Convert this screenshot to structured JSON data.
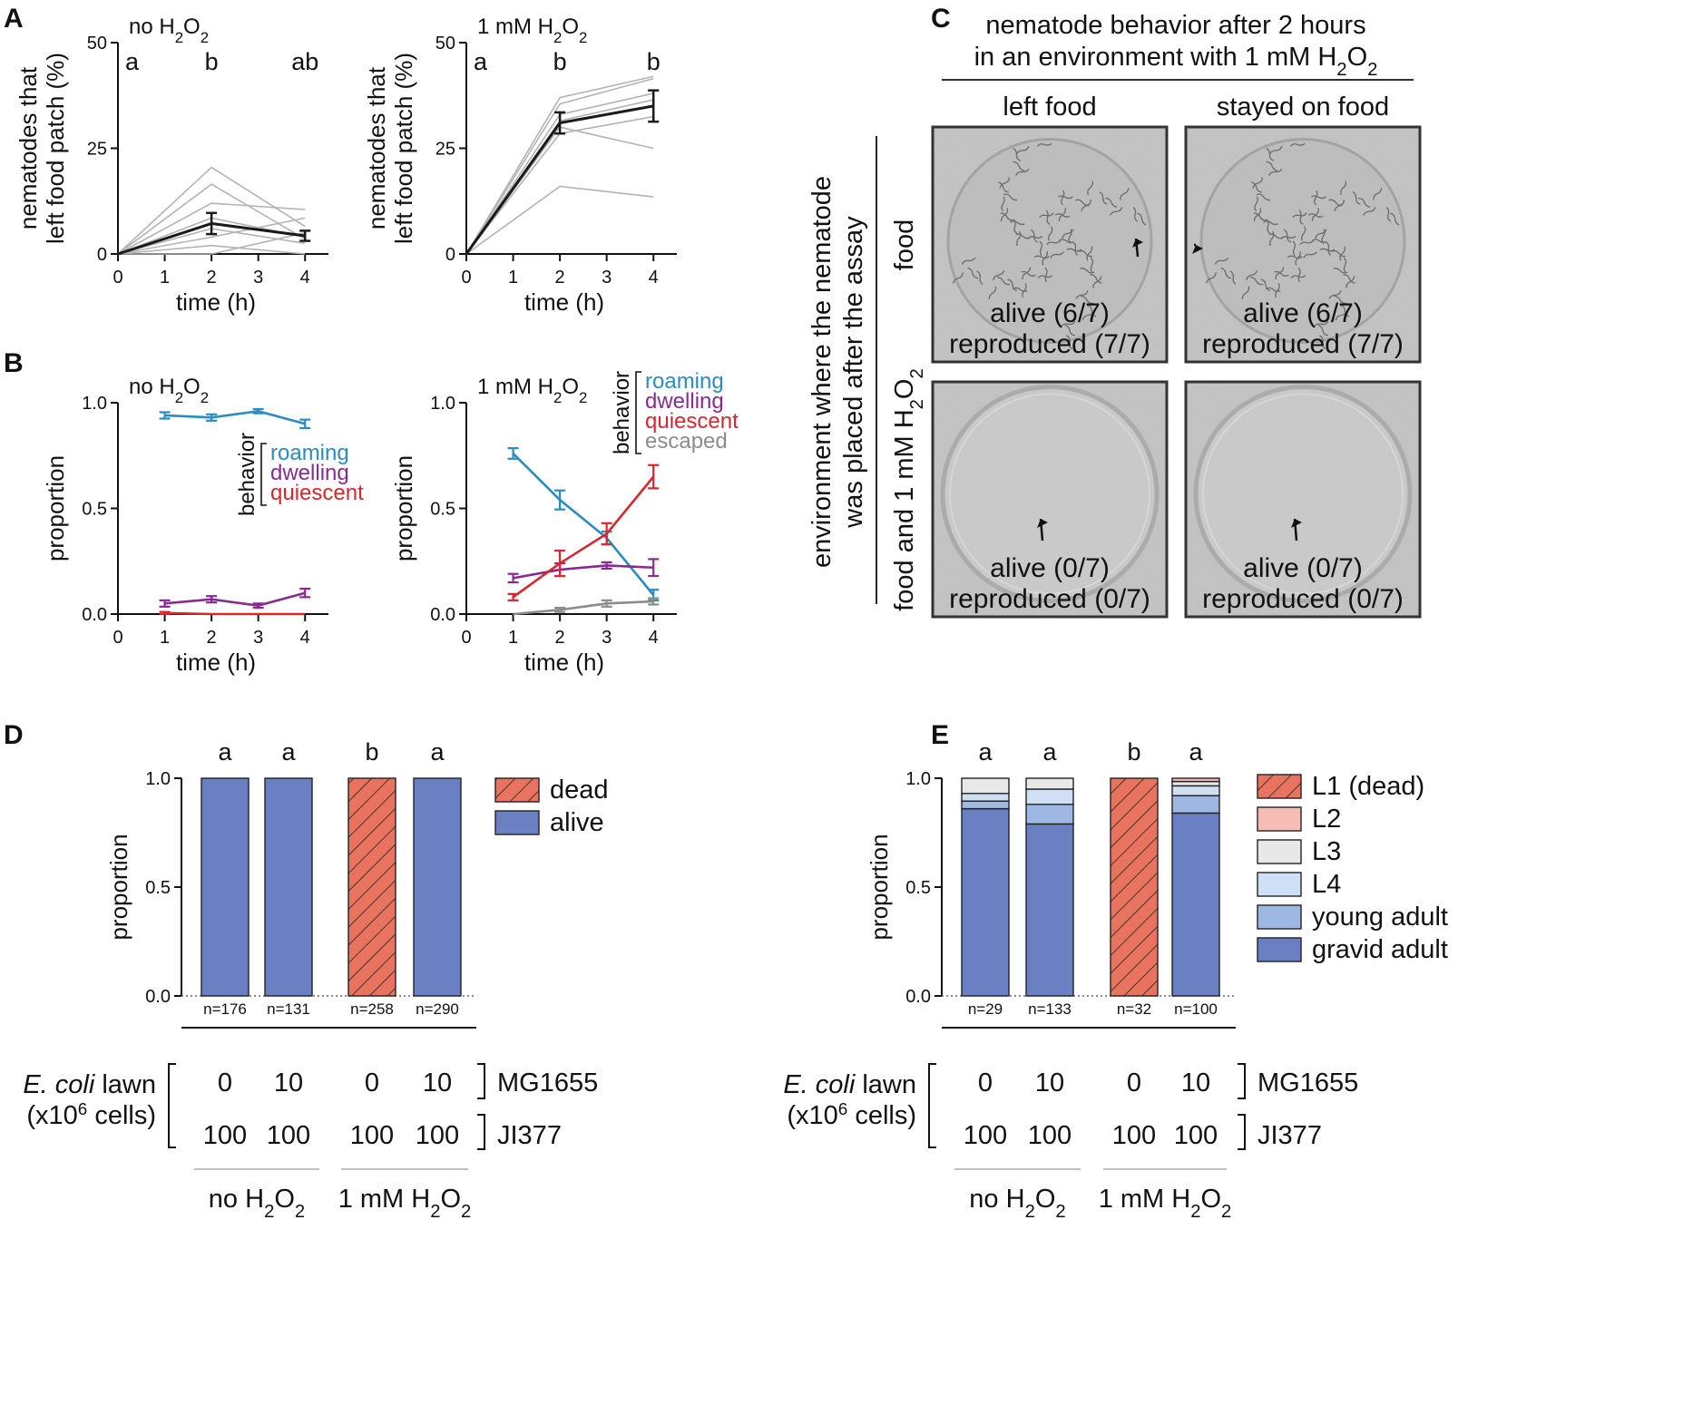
{
  "panel_letters": {
    "A": "A",
    "B": "B",
    "C": "C",
    "D": "D",
    "E": "E"
  },
  "colors": {
    "roaming": "#2a8cc3",
    "dwelling": "#8a2a8f",
    "quiescent": "#d9272e",
    "escaped": "#8c8c8c",
    "alive": "#6a80c2",
    "dead": "#e8735f",
    "L1": "#e8735f",
    "L2": "#f6bcb6",
    "L3": "#e8e8e8",
    "L4": "#cfe0f5",
    "young_adult": "#9fb7e3",
    "gravid_adult": "#6a80c2",
    "individual_line": "#b3b3b3",
    "mean_line": "#1a1a1a"
  },
  "chart_data": [
    {
      "id": "A-left",
      "type": "line",
      "title_parts": [
        "no H",
        "2",
        "O",
        "2"
      ],
      "xlabel": "time (h)",
      "ylabel": [
        "nematodes that",
        "left food patch (%)"
      ],
      "xlim": [
        0,
        4.5
      ],
      "ylim": [
        0,
        50
      ],
      "xticks": [
        "0",
        "1",
        "2",
        "3",
        "4"
      ],
      "yticks": [
        "0",
        "25",
        "50"
      ],
      "letters": [
        {
          "x": 0.3,
          "text": "a"
        },
        {
          "x": 2,
          "text": "b"
        },
        {
          "x": 4,
          "text": "ab"
        }
      ],
      "individual": [
        {
          "x": [
            0,
            2,
            4
          ],
          "y": [
            0,
            20.5,
            6.5
          ]
        },
        {
          "x": [
            0,
            2,
            4
          ],
          "y": [
            0,
            16.5,
            3.5
          ]
        },
        {
          "x": [
            0,
            2,
            4
          ],
          "y": [
            0,
            12,
            10.5
          ]
        },
        {
          "x": [
            0,
            2,
            4
          ],
          "y": [
            0,
            8.5,
            4
          ]
        },
        {
          "x": [
            0,
            2,
            4
          ],
          "y": [
            0,
            6,
            2.5
          ]
        },
        {
          "x": [
            0,
            2,
            4
          ],
          "y": [
            0,
            4,
            8.5
          ]
        },
        {
          "x": [
            0,
            2,
            4
          ],
          "y": [
            0,
            2,
            0
          ]
        },
        {
          "x": [
            0,
            2,
            4
          ],
          "y": [
            0,
            0,
            5
          ]
        }
      ],
      "mean": {
        "x": [
          0,
          2,
          4
        ],
        "y": [
          0,
          7.2,
          4.3
        ],
        "err": [
          0,
          2.5,
          1.2
        ]
      }
    },
    {
      "id": "A-right",
      "type": "line",
      "title_parts": [
        "1 mM H",
        "2",
        "O",
        "2"
      ],
      "xlabel": "time (h)",
      "ylabel": [
        "nematodes that",
        "left food patch (%)"
      ],
      "xlim": [
        0,
        4.5
      ],
      "ylim": [
        0,
        50
      ],
      "xticks": [
        "0",
        "1",
        "2",
        "3",
        "4"
      ],
      "yticks": [
        "0",
        "25",
        "50"
      ],
      "letters": [
        {
          "x": 0.3,
          "text": "a"
        },
        {
          "x": 2,
          "text": "b"
        },
        {
          "x": 4,
          "text": "b"
        }
      ],
      "individual": [
        {
          "x": [
            0,
            2,
            4
          ],
          "y": [
            0,
            37,
            42
          ]
        },
        {
          "x": [
            0,
            2,
            4
          ],
          "y": [
            0,
            35.5,
            41.5
          ]
        },
        {
          "x": [
            0,
            2,
            4
          ],
          "y": [
            0,
            33,
            38
          ]
        },
        {
          "x": [
            0,
            2,
            4
          ],
          "y": [
            0,
            31.5,
            36.5
          ]
        },
        {
          "x": [
            0,
            2,
            4
          ],
          "y": [
            0,
            30,
            25
          ]
        },
        {
          "x": [
            0,
            2,
            4
          ],
          "y": [
            0,
            28.5,
            32.5
          ]
        },
        {
          "x": [
            0,
            2,
            4
          ],
          "y": [
            0,
            16,
            13.5
          ]
        }
      ],
      "mean": {
        "x": [
          0,
          2,
          4
        ],
        "y": [
          0,
          31,
          35
        ],
        "err": [
          0,
          2.5,
          3.7
        ]
      }
    },
    {
      "id": "B-left",
      "type": "line",
      "title_parts": [
        "no H",
        "2",
        "O",
        "2"
      ],
      "xlabel": "time (h)",
      "ylabel": "proportion",
      "xlim": [
        0,
        4.5
      ],
      "ylim": [
        0,
        1.0
      ],
      "xticks": [
        "0",
        "1",
        "2",
        "3",
        "4"
      ],
      "yticks": [
        "0.0",
        "0.5",
        "1.0"
      ],
      "legend_title": "behavior",
      "series": [
        {
          "name": "roaming",
          "color_key": "roaming",
          "x": [
            1,
            2,
            3,
            4
          ],
          "y": [
            0.94,
            0.93,
            0.96,
            0.9
          ],
          "err": [
            0.015,
            0.015,
            0.01,
            0.02
          ]
        },
        {
          "name": "dwelling",
          "color_key": "dwelling",
          "x": [
            1,
            2,
            3,
            4
          ],
          "y": [
            0.05,
            0.07,
            0.04,
            0.1
          ],
          "err": [
            0.015,
            0.015,
            0.01,
            0.02
          ]
        },
        {
          "name": "quiescent",
          "color_key": "quiescent",
          "x": [
            1,
            2,
            3,
            4
          ],
          "y": [
            0.005,
            0.0,
            0.0,
            0.0
          ],
          "err": [
            0.005,
            0,
            0,
            0
          ]
        }
      ]
    },
    {
      "id": "B-right",
      "type": "line",
      "title_parts": [
        "1 mM H",
        "2",
        "O",
        "2"
      ],
      "xlabel": "time (h)",
      "ylabel": "proportion",
      "xlim": [
        0,
        4.5
      ],
      "ylim": [
        0,
        1.0
      ],
      "xticks": [
        "0",
        "1",
        "2",
        "3",
        "4"
      ],
      "yticks": [
        "0.0",
        "0.5",
        "1.0"
      ],
      "legend_title": "behavior",
      "series": [
        {
          "name": "roaming",
          "color_key": "roaming",
          "x": [
            1,
            2,
            3,
            4
          ],
          "y": [
            0.76,
            0.54,
            0.36,
            0.09
          ],
          "err": [
            0.025,
            0.045,
            0.03,
            0.025
          ]
        },
        {
          "name": "dwelling",
          "color_key": "dwelling",
          "x": [
            1,
            2,
            3,
            4
          ],
          "y": [
            0.17,
            0.21,
            0.23,
            0.22
          ],
          "err": [
            0.02,
            0.03,
            0.015,
            0.04
          ]
        },
        {
          "name": "quiescent",
          "color_key": "quiescent",
          "x": [
            1,
            2,
            3,
            4
          ],
          "y": [
            0.08,
            0.24,
            0.38,
            0.65
          ],
          "err": [
            0.015,
            0.06,
            0.05,
            0.055
          ]
        },
        {
          "name": "escaped",
          "color_key": "escaped",
          "x": [
            1,
            2,
            3,
            4
          ],
          "y": [
            0.0,
            0.02,
            0.05,
            0.06
          ],
          "err": [
            0,
            0.01,
            0.015,
            0.015
          ]
        }
      ]
    },
    {
      "id": "D",
      "type": "bar",
      "ylabel": "proportion",
      "ylim": [
        0,
        1.0
      ],
      "yticks": [
        "0.0",
        "0.5",
        "1.0"
      ],
      "categories": [
        "n=176",
        "n=131",
        "n=258",
        "n=290"
      ],
      "letters": [
        "a",
        "a",
        "b",
        "a"
      ],
      "series": [
        {
          "name": "dead",
          "color_key": "dead",
          "hatch": true,
          "values": [
            0,
            0,
            1.0,
            0
          ]
        },
        {
          "name": "alive",
          "color_key": "alive",
          "hatch": false,
          "values": [
            1.0,
            1.0,
            0,
            1.0
          ]
        }
      ],
      "legend_order": [
        "dead",
        "alive"
      ],
      "lawn_label": [
        "E. coli",
        " lawn",
        "(x10",
        "6",
        " cells)"
      ],
      "row_mg1655": [
        "0",
        "10",
        "0",
        "10"
      ],
      "row_ji377": [
        "100",
        "100",
        "100",
        "100"
      ],
      "row_labels": [
        "MG1655",
        "JI377"
      ],
      "groups": [
        [
          "no H",
          "2",
          "O",
          "2"
        ],
        [
          "1 mM H",
          "2",
          "O",
          "2"
        ]
      ]
    },
    {
      "id": "E",
      "type": "bar",
      "ylabel": "proportion",
      "ylim": [
        0,
        1.0
      ],
      "yticks": [
        "0.0",
        "0.5",
        "1.0"
      ],
      "categories": [
        "n=29",
        "n=133",
        "n=32",
        "n=100"
      ],
      "letters": [
        "a",
        "a",
        "b",
        "a"
      ],
      "series": [
        {
          "name": "gravid adult",
          "color_key": "gravid_adult",
          "hatch": false,
          "values": [
            0.86,
            0.79,
            0,
            0.84
          ]
        },
        {
          "name": "young adult",
          "color_key": "young_adult",
          "hatch": false,
          "values": [
            0.035,
            0.09,
            0,
            0.08
          ]
        },
        {
          "name": "L4",
          "color_key": "L4",
          "hatch": false,
          "values": [
            0.035,
            0.07,
            0,
            0.045
          ]
        },
        {
          "name": "L3",
          "color_key": "L3",
          "hatch": false,
          "values": [
            0.07,
            0.05,
            0,
            0.02
          ]
        },
        {
          "name": "L2",
          "color_key": "L2",
          "hatch": false,
          "values": [
            0,
            0,
            0,
            0.015
          ]
        },
        {
          "name": "L1 (dead)",
          "color_key": "L1",
          "hatch": true,
          "values": [
            0,
            0,
            1.0,
            0
          ]
        }
      ],
      "legend_order": [
        "L1 (dead)",
        "L2",
        "L3",
        "L4",
        "young adult",
        "gravid adult"
      ],
      "lawn_label": [
        "E. coli",
        " lawn",
        "(x10",
        "6",
        " cells)"
      ],
      "row_mg1655": [
        "0",
        "10",
        "0",
        "10"
      ],
      "row_ji377": [
        "100",
        "100",
        "100",
        "100"
      ],
      "row_labels": [
        "MG1655",
        "JI377"
      ],
      "groups": [
        [
          "no H",
          "2",
          "O",
          "2"
        ],
        [
          "1 mM H",
          "2",
          "O",
          "2"
        ]
      ]
    }
  ],
  "panelC": {
    "header_line1": "nematode behavior after 2 hours",
    "header_line2_parts": [
      "in an environment with 1 mM H",
      "2",
      "O",
      "2"
    ],
    "col_left": "left food",
    "col_right": "stayed on food",
    "row_label_line1": "environment where the nematode",
    "row_label_line2": "was placed after the assay",
    "row_food": "food",
    "row_h2o2_parts": [
      "food and 1 mM H",
      "2",
      "O",
      "2"
    ],
    "cells": [
      {
        "alive": "alive (6/7)",
        "repro": "reproduced (7/7)"
      },
      {
        "alive": "alive (6/7)",
        "repro": "reproduced (7/7)"
      },
      {
        "alive": "alive (0/7)",
        "repro": "reproduced (0/7)"
      },
      {
        "alive": "alive (0/7)",
        "repro": "reproduced (0/7)"
      }
    ]
  }
}
